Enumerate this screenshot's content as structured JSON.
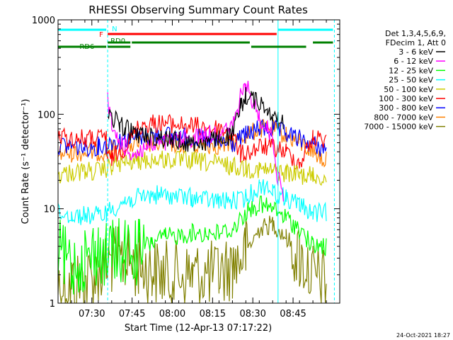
{
  "chart_data": {
    "type": "line",
    "title": "RHESSI Observing Summary Count Rates",
    "xlabel": "Start Time (12-Apr-13 07:17:22)",
    "ylabel": "Count Rate (s⁻¹ detector⁻¹)",
    "x_unit": "minutes after 07:17:22 UT",
    "xlim": [
      0,
      105
    ],
    "ylim": [
      1,
      1000
    ],
    "y_scale": "log",
    "grid": false,
    "legend_position": "right",
    "x_ticks": [
      {
        "value": 12.6,
        "label": "07:30"
      },
      {
        "value": 27.6,
        "label": "07:45"
      },
      {
        "value": 42.6,
        "label": "08:00"
      },
      {
        "value": 57.6,
        "label": "08:15"
      },
      {
        "value": 72.6,
        "label": "08:30"
      },
      {
        "value": 87.6,
        "label": "08:45"
      }
    ],
    "y_ticks": [
      {
        "value": 1,
        "label": "1"
      },
      {
        "value": 10,
        "label": "10"
      },
      {
        "value": 100,
        "label": "100"
      },
      {
        "value": 1000,
        "label": "1000"
      }
    ],
    "legend_header": [
      "Det 1,3,4,5,6,9,",
      "FDecim 1, Att 0"
    ],
    "series": [
      {
        "name": "3 - 6 keV",
        "color": "#000000",
        "x": [
          0,
          18,
          18.5,
          20,
          23,
          25,
          28,
          30,
          33,
          40,
          48,
          55,
          60,
          65,
          68,
          70,
          72,
          75,
          78,
          80,
          82,
          84
        ],
        "y": [
          null,
          null,
          100,
          90,
          80,
          70,
          65,
          60,
          60,
          55,
          50,
          50,
          55,
          60,
          120,
          160,
          150,
          130,
          120,
          100,
          85,
          80
        ]
      },
      {
        "name": "6 - 12 keV",
        "color": "#ff00ff",
        "x": [
          0,
          18,
          18.5,
          20,
          22,
          25,
          28,
          30,
          33,
          40,
          48,
          55,
          60,
          65,
          68,
          70,
          72,
          75,
          78,
          80,
          82,
          84
        ],
        "y": [
          null,
          null,
          140,
          75,
          55,
          45,
          38,
          40,
          45,
          50,
          55,
          60,
          65,
          70,
          150,
          200,
          150,
          95,
          70,
          60,
          20,
          15
        ]
      },
      {
        "name": "12 - 25 keV",
        "color": "#00ff00",
        "x": [
          0,
          5,
          10,
          15,
          18,
          20,
          25,
          30,
          35,
          40,
          50,
          60,
          65,
          70,
          75,
          80,
          85,
          90,
          95,
          100
        ],
        "y": [
          3.5,
          2.5,
          3,
          3.5,
          3.2,
          3.5,
          3.5,
          3.5,
          4.5,
          5,
          5.5,
          5.5,
          6,
          9,
          11,
          10,
          8,
          6,
          4,
          4
        ]
      },
      {
        "name": "25 - 50 keV",
        "color": "#00ffff",
        "x": [
          0,
          5,
          10,
          15,
          18,
          20,
          25,
          30,
          35,
          40,
          50,
          60,
          65,
          70,
          75,
          78,
          80,
          85,
          90,
          95,
          100
        ],
        "y": [
          9,
          8.5,
          8.5,
          8.5,
          9,
          10,
          12,
          13,
          14,
          14,
          13,
          12,
          12,
          13,
          17,
          18,
          15,
          13,
          11,
          9,
          9
        ]
      },
      {
        "name": "50 - 100 keV",
        "color": "#cccc00",
        "x": [
          0,
          5,
          10,
          15,
          18,
          20,
          25,
          30,
          35,
          40,
          50,
          60,
          65,
          70,
          75,
          80,
          85,
          90,
          95,
          100
        ],
        "y": [
          23,
          24,
          25,
          25,
          26,
          28,
          31,
          32,
          33,
          33,
          32,
          30,
          28,
          27,
          26,
          25,
          24,
          23,
          22,
          21
        ]
      },
      {
        "name": "100 - 300 keV",
        "color": "#ff0000",
        "x": [
          0,
          5,
          10,
          15,
          18,
          18.5,
          20,
          25,
          30,
          35,
          40,
          50,
          60,
          65,
          68,
          70,
          75,
          80,
          85,
          90,
          95,
          100
        ],
        "y": [
          58,
          55,
          55,
          55,
          60,
          33,
          34,
          45,
          75,
          80,
          80,
          75,
          70,
          60,
          38,
          38,
          45,
          45,
          40,
          30,
          55,
          55
        ]
      },
      {
        "name": "300 - 800 keV",
        "color": "#0000ff",
        "x": [
          0,
          5,
          10,
          15,
          18,
          20,
          25,
          30,
          35,
          40,
          50,
          60,
          65,
          70,
          75,
          80,
          85,
          90,
          95,
          100
        ],
        "y": [
          48,
          46,
          45,
          46,
          47,
          50,
          55,
          58,
          60,
          60,
          57,
          50,
          48,
          60,
          70,
          70,
          62,
          55,
          48,
          42
        ]
      },
      {
        "name": "800 - 7000 keV",
        "color": "#ff8000",
        "x": [
          0,
          5,
          10,
          15,
          18,
          20,
          25,
          30,
          35,
          40,
          50,
          60,
          65,
          70,
          75,
          80,
          85,
          90,
          95,
          100
        ],
        "y": [
          38,
          39,
          40,
          40,
          41,
          43,
          47,
          48,
          49,
          49,
          48,
          47,
          48,
          60,
          70,
          70,
          60,
          50,
          40,
          32
        ]
      },
      {
        "name": "7000 - 15000 keV",
        "color": "#808000",
        "x": [
          0,
          5,
          10,
          15,
          18,
          20,
          25,
          30,
          35,
          40,
          50,
          60,
          65,
          70,
          75,
          80,
          85,
          90,
          95,
          100
        ],
        "y": [
          1.6,
          1.6,
          1.7,
          2.0,
          2.5,
          2.8,
          2.8,
          2.5,
          2.2,
          2.0,
          2.0,
          2.0,
          2.5,
          3.5,
          6,
          7,
          5,
          3,
          2,
          1.6
        ]
      }
    ],
    "flag_bars": [
      {
        "label": "N",
        "color": "#00ffff",
        "level": 1,
        "segments": [
          [
            0,
            18.5
          ],
          [
            82,
            103
          ]
        ]
      },
      {
        "label": "F",
        "color": "#ff0000",
        "level": 2,
        "segments": [
          [
            18.5,
            82
          ]
        ]
      },
      {
        "label": "RD0",
        "color": "#008000",
        "level": 3,
        "segments": [
          [
            18.5,
            27.5
          ],
          [
            27.5,
            72
          ],
          [
            95,
            103
          ]
        ]
      },
      {
        "label": "RD6",
        "color": "#008000",
        "level": 4,
        "segments": [
          [
            0,
            18.5
          ],
          [
            18.5,
            27.5
          ],
          [
            72,
            93
          ]
        ]
      }
    ],
    "vertical_markers": [
      {
        "x": 18.5,
        "color": "#00ffff",
        "style": "dashed"
      },
      {
        "x": 82,
        "color": "#00ffff",
        "style": "solid"
      },
      {
        "x": 103,
        "color": "#00ffff",
        "style": "dashed"
      }
    ],
    "footer_date": "24-Oct-2021 18:27"
  }
}
